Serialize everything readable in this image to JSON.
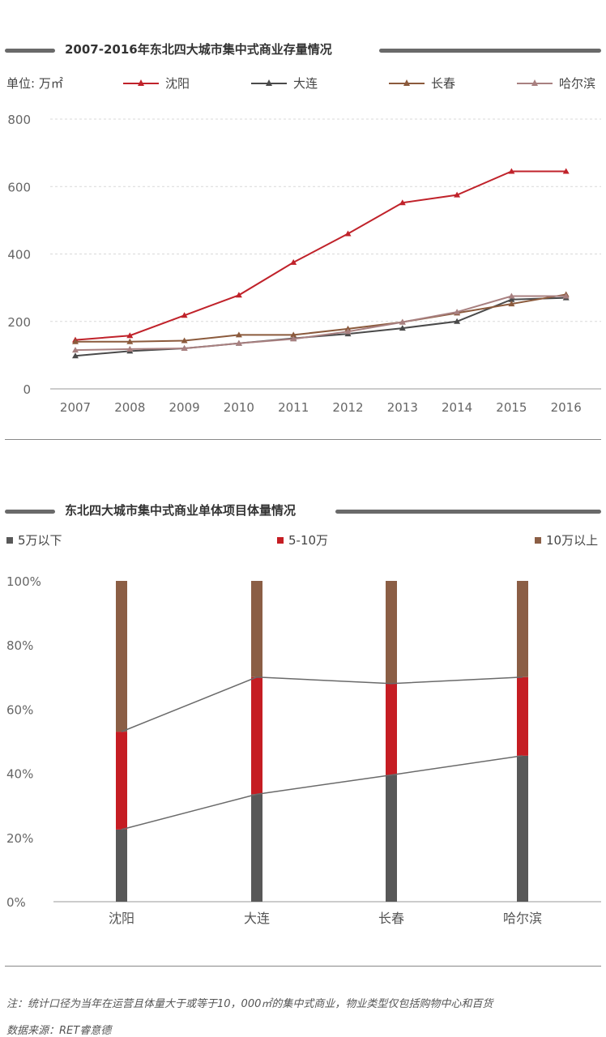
{
  "colors": {
    "shenyang": "#c0222a",
    "dalian": "#4a4a4a",
    "changchun": "#8b5a3c",
    "harbin": "#a88080",
    "seg_low": "#585858",
    "seg_mid": "#c51d23",
    "seg_high": "#8b5e45",
    "grid": "#d9d9d9",
    "axis": "#999999"
  },
  "chart1": {
    "title": "2007-2016年东北四大城市集中式商业存量情况",
    "unit_label": "单位: 万㎡"
  },
  "chart2": {
    "title": "东北四大城市集中式商业单体项目体量情况"
  },
  "footer": {
    "note": "注：统计口径为当年在运营且体量大于或等于10，000㎡的集中式商业，物业类型仅包括购物中心和百货",
    "source": "数据来源：RET睿意德"
  },
  "chart_data": [
    {
      "type": "line",
      "title": "2007-2016年东北四大城市集中式商业存量情况",
      "ylabel": "单位: 万㎡",
      "x": [
        "2007",
        "2008",
        "2009",
        "2010",
        "2011",
        "2012",
        "2013",
        "2014",
        "2015",
        "2016"
      ],
      "ylim": [
        0,
        800
      ],
      "yticks": [
        "0",
        "200",
        "400",
        "600",
        "800"
      ],
      "grid": true,
      "legend": "top",
      "series": [
        {
          "name": "沈阳",
          "values": [
            145,
            158,
            218,
            278,
            375,
            460,
            552,
            575,
            645,
            645
          ]
        },
        {
          "name": "大连",
          "values": [
            98,
            112,
            120,
            135,
            150,
            163,
            180,
            200,
            265,
            270
          ]
        },
        {
          "name": "长春",
          "values": [
            140,
            140,
            143,
            160,
            160,
            178,
            198,
            225,
            252,
            280
          ]
        },
        {
          "name": "哈尔滨",
          "values": [
            115,
            118,
            120,
            135,
            148,
            170,
            198,
            228,
            275,
            275
          ]
        }
      ]
    },
    {
      "type": "bar",
      "stacked": true,
      "title": "东北四大城市集中式商业单体项目体量情况",
      "categories": [
        "沈阳",
        "大连",
        "长春",
        "哈尔滨"
      ],
      "ylim": [
        0,
        100
      ],
      "yticks": [
        "0%",
        "20%",
        "40%",
        "60%",
        "80%",
        "100%"
      ],
      "grid": false,
      "legend": "top",
      "series": [
        {
          "name": "5万以下",
          "values": [
            22.5,
            33.5,
            39.5,
            45.5
          ]
        },
        {
          "name": "5-10万",
          "values": [
            30.5,
            36.5,
            28.5,
            24.5
          ]
        },
        {
          "name": "10万以上",
          "values": [
            47,
            30,
            32,
            30
          ]
        }
      ]
    }
  ]
}
